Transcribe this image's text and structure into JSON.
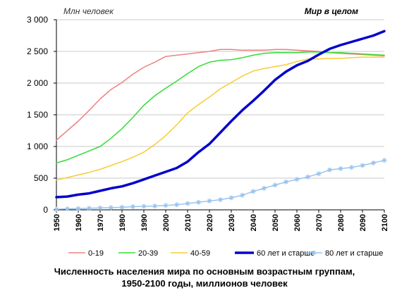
{
  "chart_data": {
    "type": "line",
    "unit_label": "Млн человек",
    "region_label": "Мир в целом",
    "caption_line1": "Численность населения мира по основным возрастным группам,",
    "caption_line2": "1950-2100 годы, миллионов человек",
    "x": [
      1950,
      1955,
      1960,
      1965,
      1970,
      1975,
      1980,
      1985,
      1990,
      1995,
      2000,
      2005,
      2010,
      2015,
      2020,
      2025,
      2030,
      2035,
      2040,
      2045,
      2050,
      2055,
      2060,
      2065,
      2070,
      2075,
      2080,
      2085,
      2090,
      2095,
      2100
    ],
    "x_ticks": [
      "1950",
      "1960",
      "1970",
      "1980",
      "1990",
      "2000",
      "2010",
      "2020",
      "2030",
      "2040",
      "2050",
      "2060",
      "2070",
      "2080",
      "2090",
      "2100"
    ],
    "y_ticks": [
      "0",
      "500",
      "1 000",
      "1 500",
      "2 000",
      "2 500",
      "3 000"
    ],
    "y_tick_values": [
      0,
      500,
      1000,
      1500,
      2000,
      2500,
      3000
    ],
    "ylim": [
      0,
      3000
    ],
    "xlim": [
      1950,
      2100
    ],
    "grid": "horizontal",
    "legend_position": "bottom",
    "series": [
      {
        "name": "0-19",
        "color": "#f08080",
        "width": 1.5,
        "markers": false,
        "values": [
          1100,
          1250,
          1400,
          1570,
          1750,
          1900,
          2010,
          2140,
          2250,
          2330,
          2420,
          2440,
          2460,
          2480,
          2500,
          2530,
          2530,
          2520,
          2520,
          2520,
          2530,
          2530,
          2520,
          2510,
          2500,
          2480,
          2470,
          2460,
          2450,
          2440,
          2430
        ]
      },
      {
        "name": "20-39",
        "color": "#33dd33",
        "width": 1.5,
        "markers": false,
        "values": [
          740,
          790,
          860,
          930,
          1000,
          1130,
          1280,
          1460,
          1650,
          1800,
          1920,
          2030,
          2150,
          2260,
          2330,
          2360,
          2370,
          2400,
          2440,
          2470,
          2480,
          2480,
          2480,
          2490,
          2490,
          2480,
          2480,
          2470,
          2460,
          2450,
          2440
        ]
      },
      {
        "name": "40-59",
        "color": "#f7cc33",
        "width": 1.5,
        "markers": false,
        "values": [
          470,
          510,
          550,
          590,
          640,
          700,
          760,
          830,
          910,
          1030,
          1170,
          1340,
          1530,
          1660,
          1780,
          1910,
          2010,
          2110,
          2190,
          2230,
          2260,
          2290,
          2340,
          2380,
          2380,
          2390,
          2390,
          2400,
          2410,
          2410,
          2410
        ]
      },
      {
        "name": "60 лет и старше",
        "color": "#0000cc",
        "width": 3.5,
        "markers": false,
        "values": [
          200,
          210,
          240,
          260,
          300,
          340,
          370,
          420,
          480,
          540,
          600,
          660,
          760,
          910,
          1040,
          1220,
          1400,
          1570,
          1720,
          1880,
          2050,
          2180,
          2280,
          2350,
          2450,
          2540,
          2600,
          2650,
          2700,
          2750,
          2820
        ]
      },
      {
        "name": "80 лет и старше",
        "color": "#99c4ee",
        "width": 1.5,
        "markers": true,
        "values": [
          10,
          15,
          20,
          25,
          30,
          35,
          40,
          50,
          55,
          60,
          70,
          80,
          100,
          120,
          140,
          160,
          190,
          230,
          290,
          340,
          390,
          440,
          480,
          520,
          570,
          630,
          650,
          670,
          700,
          740,
          780
        ]
      }
    ]
  }
}
